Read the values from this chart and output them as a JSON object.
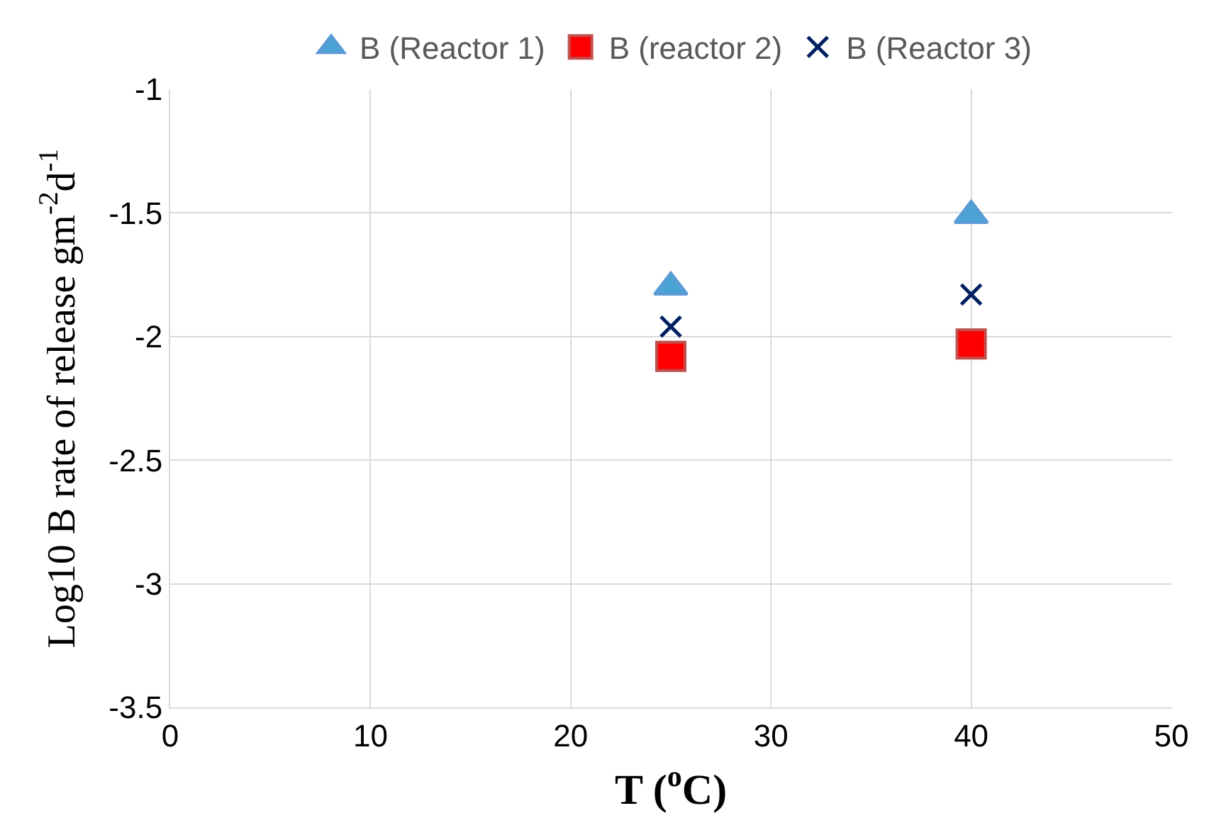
{
  "chart_data": {
    "type": "scatter",
    "xlabel": "T ($^{o}$C)",
    "ylabel": "Log10 B rate of release gm$^{-2}$d$^{-1}$",
    "x": [
      25,
      40
    ],
    "series": [
      {
        "name": "B (Reactor 1)",
        "color": "#4ba3d3",
        "marker": "triangle",
        "values": [
          -1.8,
          -1.51
        ]
      },
      {
        "name": "B (reactor 2)",
        "color": "#ff0000",
        "marker": "square",
        "values": [
          -2.08,
          -2.03
        ]
      },
      {
        "name": "B (Reactor 3)",
        "color": "#002060",
        "marker": "cross",
        "values": [
          -1.96,
          -1.83
        ]
      }
    ],
    "xlim": [
      0,
      50
    ],
    "xticks": [
      0,
      10,
      20,
      30,
      40,
      50
    ],
    "ylim": [
      -3.5,
      -1
    ],
    "yticks": [
      -3.5,
      -3,
      -2.5,
      -2,
      -1.5,
      -1
    ],
    "grid": true,
    "legend": "top"
  }
}
